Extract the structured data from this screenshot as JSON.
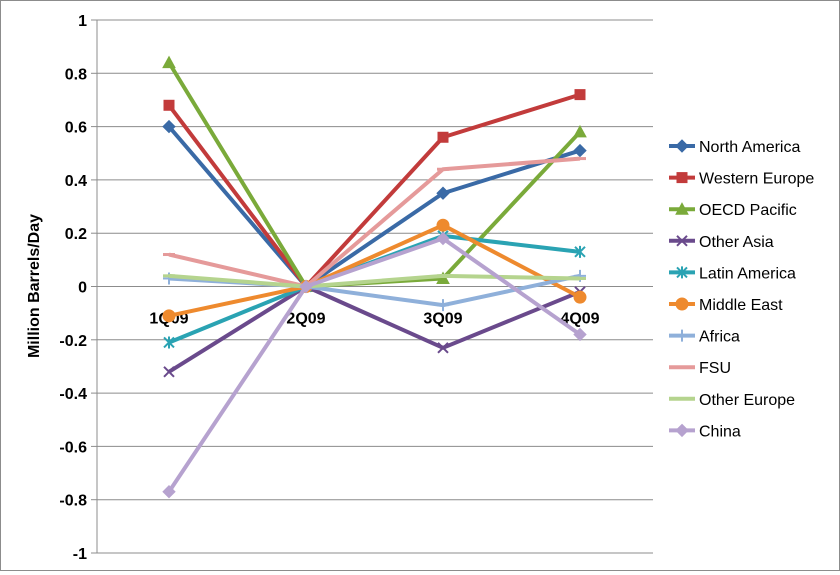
{
  "chart_data": {
    "type": "line",
    "title": "",
    "xlabel": "",
    "ylabel": "Million Barrels/Day",
    "ylim": [
      -1,
      1
    ],
    "ytick_step": 0.2,
    "grid": "horizontal",
    "legend_position": "right",
    "categories": [
      "1Q09",
      "2Q09",
      "3Q09",
      "4Q09"
    ],
    "series": [
      {
        "name": "North America",
        "color": "#3a6aa6",
        "marker": "diamond",
        "values": [
          0.6,
          0.0,
          0.35,
          0.51
        ]
      },
      {
        "name": "Western Europe",
        "color": "#c23b3b",
        "marker": "square",
        "values": [
          0.68,
          0.0,
          0.56,
          0.72
        ]
      },
      {
        "name": "OECD Pacific",
        "color": "#7aaa3a",
        "marker": "triangle",
        "values": [
          0.84,
          0.0,
          0.03,
          0.58
        ]
      },
      {
        "name": "Other Asia",
        "color": "#6a4a8c",
        "marker": "x",
        "values": [
          -0.32,
          0.0,
          -0.23,
          -0.02
        ]
      },
      {
        "name": "Latin America",
        "color": "#2aa3b3",
        "marker": "star",
        "values": [
          -0.21,
          0.0,
          0.19,
          0.13
        ]
      },
      {
        "name": "Middle East",
        "color": "#ee8a2e",
        "marker": "circle",
        "values": [
          -0.11,
          0.0,
          0.23,
          -0.04
        ]
      },
      {
        "name": "Africa",
        "color": "#8fb0da",
        "marker": "plus",
        "values": [
          0.03,
          0.0,
          -0.07,
          0.04
        ]
      },
      {
        "name": "FSU",
        "color": "#e59a9a",
        "marker": "dash",
        "values": [
          0.12,
          0.0,
          0.44,
          0.48
        ]
      },
      {
        "name": "Other Europe",
        "color": "#b5d48e",
        "marker": "dash",
        "values": [
          0.04,
          0.0,
          0.04,
          0.03
        ]
      },
      {
        "name": "China",
        "color": "#b6a2cf",
        "marker": "diamond",
        "values": [
          -0.77,
          0.0,
          0.18,
          -0.18
        ]
      }
    ]
  }
}
